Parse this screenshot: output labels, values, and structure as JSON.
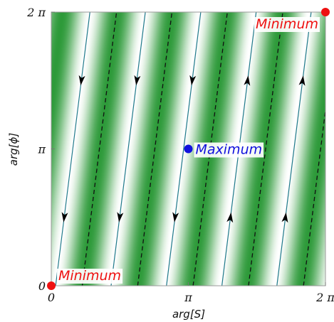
{
  "chart_data": {
    "type": "vector-field",
    "xlabel": "arg[S]",
    "ylabel": "arg[ϕ]",
    "xlim": [
      0,
      6.2832
    ],
    "ylim": [
      0,
      6.2832
    ],
    "xticks": [
      {
        "value": 0,
        "label": "0"
      },
      {
        "value": 3.1416,
        "label": "π"
      },
      {
        "value": 6.2832,
        "label": "2 π"
      }
    ],
    "yticks": [
      {
        "value": 0,
        "label": "0"
      },
      {
        "value": 3.1416,
        "label": "π"
      },
      {
        "value": 6.2832,
        "label": "2 π"
      }
    ],
    "background": {
      "colormap": "white-to-green",
      "color_low": "#ffffff",
      "color_high": "#2e9a3a",
      "stripe_direction": "x = 0.125*y + c",
      "stripe_period_x": 1.2566
    },
    "stream_lines": [
      {
        "x_at_y0": 0.1,
        "direction": "down",
        "color": "#1f7a8a"
      },
      {
        "x_at_y0": 1.37,
        "direction": "down",
        "color": "#1f7a8a"
      },
      {
        "x_at_y0": 2.64,
        "direction": "down",
        "color": "#1f7a8a"
      },
      {
        "x_at_y0": 3.91,
        "direction": "up",
        "color": "#1f7a8a"
      },
      {
        "x_at_y0": 5.17,
        "direction": "up",
        "color": "#1f7a8a"
      }
    ],
    "separatrix_lines": [
      {
        "x_at_y0": 0.71,
        "color": "#111111"
      },
      {
        "x_at_y0": 1.98,
        "color": "#111111"
      },
      {
        "x_at_y0": 3.25,
        "color": "#111111"
      },
      {
        "x_at_y0": 4.52,
        "color": "#111111"
      },
      {
        "x_at_y0": 5.78,
        "color": "#111111"
      }
    ],
    "points": [
      {
        "label": "Minimum",
        "x": 0,
        "y": 0,
        "color": "#ee1111",
        "label_pos": "right"
      },
      {
        "label": "Maximum",
        "x": 3.1416,
        "y": 3.1416,
        "color": "#1111dd",
        "label_pos": "right"
      },
      {
        "label": "Minimum",
        "x": 6.2832,
        "y": 6.2832,
        "color": "#ee1111",
        "label_pos": "left"
      }
    ]
  }
}
